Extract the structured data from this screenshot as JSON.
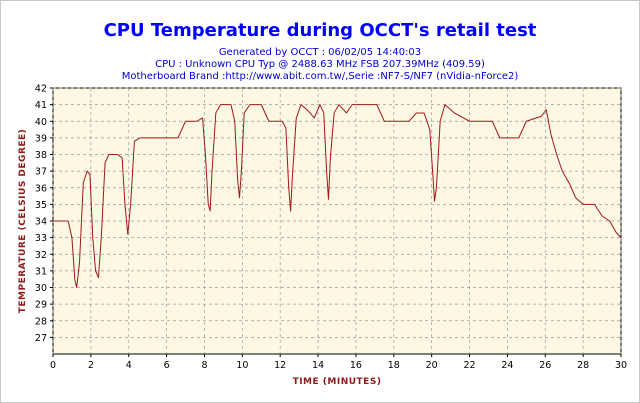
{
  "chart_data": {
    "type": "line",
    "title": "CPU Temperature during OCCT's retail test",
    "subtitle_lines": [
      "Generated by OCCT : 06/02/05 14:40:03",
      "CPU : Unknown CPU Typ @ 2488.63 MHz FSB 207.39MHz (409.59)",
      "Motherboard Brand :http://www.abit.com.tw/,Serie :NF7-S/NF7 (nVidia-nForce2)"
    ],
    "xlabel": "TIME (MINUTES)",
    "ylabel": "TEMPERATURE (CELSIUS DEGREE)",
    "xlim": [
      0,
      30
    ],
    "ylim": [
      26,
      42
    ],
    "x_ticks": [
      0,
      2,
      4,
      6,
      8,
      10,
      12,
      14,
      16,
      18,
      20,
      22,
      24,
      26,
      28,
      30
    ],
    "y_ticks": [
      27,
      28,
      29,
      30,
      31,
      32,
      33,
      34,
      35,
      36,
      37,
      38,
      39,
      40,
      41,
      42
    ],
    "grid": true,
    "series": [
      {
        "color": "#a01818",
        "points": [
          [
            0,
            34
          ],
          [
            0.8,
            34
          ],
          [
            1.0,
            33
          ],
          [
            1.15,
            30.5
          ],
          [
            1.25,
            30
          ],
          [
            1.4,
            31.5
          ],
          [
            1.6,
            36.3
          ],
          [
            1.8,
            37
          ],
          [
            1.95,
            36.8
          ],
          [
            2.1,
            33
          ],
          [
            2.25,
            31
          ],
          [
            2.4,
            30.6
          ],
          [
            2.55,
            33
          ],
          [
            2.75,
            37.5
          ],
          [
            2.95,
            38
          ],
          [
            3.4,
            38
          ],
          [
            3.65,
            37.8
          ],
          [
            3.8,
            35
          ],
          [
            3.95,
            33.2
          ],
          [
            4.1,
            35
          ],
          [
            4.3,
            38.8
          ],
          [
            4.6,
            39
          ],
          [
            6.6,
            39
          ],
          [
            7.0,
            40
          ],
          [
            7.6,
            40
          ],
          [
            7.9,
            40.2
          ],
          [
            8.05,
            38
          ],
          [
            8.2,
            35
          ],
          [
            8.3,
            34.6
          ],
          [
            8.4,
            37
          ],
          [
            8.6,
            40.5
          ],
          [
            8.85,
            41
          ],
          [
            9.4,
            41
          ],
          [
            9.6,
            40
          ],
          [
            9.75,
            36.5
          ],
          [
            9.85,
            35.4
          ],
          [
            9.95,
            37
          ],
          [
            10.1,
            40.5
          ],
          [
            10.4,
            41
          ],
          [
            11,
            41
          ],
          [
            11.4,
            40
          ],
          [
            12.1,
            40
          ],
          [
            12.3,
            39.6
          ],
          [
            12.45,
            36
          ],
          [
            12.55,
            34.6
          ],
          [
            12.65,
            36.8
          ],
          [
            12.85,
            40.2
          ],
          [
            13.1,
            41
          ],
          [
            13.5,
            40.6
          ],
          [
            13.8,
            40.2
          ],
          [
            14.1,
            41
          ],
          [
            14.3,
            40.5
          ],
          [
            14.45,
            37
          ],
          [
            14.55,
            35.3
          ],
          [
            14.65,
            37.8
          ],
          [
            14.85,
            40.5
          ],
          [
            15.1,
            41
          ],
          [
            15.5,
            40.5
          ],
          [
            15.8,
            41
          ],
          [
            17.1,
            41
          ],
          [
            17.5,
            40
          ],
          [
            18.8,
            40
          ],
          [
            19.2,
            40.5
          ],
          [
            19.6,
            40.5
          ],
          [
            19.9,
            39.5
          ],
          [
            20.05,
            37
          ],
          [
            20.15,
            35.2
          ],
          [
            20.25,
            36
          ],
          [
            20.45,
            40
          ],
          [
            20.7,
            41
          ],
          [
            21.2,
            40.5
          ],
          [
            22,
            40
          ],
          [
            23.2,
            40
          ],
          [
            23.6,
            39
          ],
          [
            24.6,
            39
          ],
          [
            25,
            40
          ],
          [
            25.8,
            40.3
          ],
          [
            26.05,
            40.7
          ],
          [
            26.3,
            39.2
          ],
          [
            26.6,
            38
          ],
          [
            26.9,
            37
          ],
          [
            27.3,
            36.2
          ],
          [
            27.6,
            35.4
          ],
          [
            28,
            35
          ],
          [
            28.6,
            35
          ],
          [
            29,
            34.3
          ],
          [
            29.4,
            34
          ],
          [
            29.75,
            33.3
          ],
          [
            30,
            33
          ]
        ]
      }
    ]
  }
}
